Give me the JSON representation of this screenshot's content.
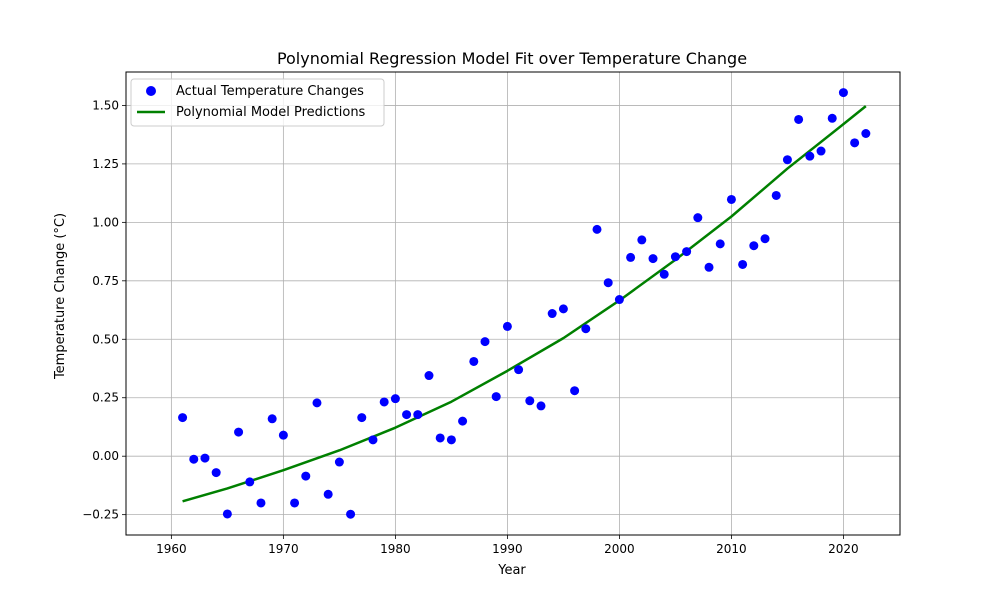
{
  "chart_data": {
    "type": "scatter",
    "title": "Polynomial Regression Model Fit over Temperature Change",
    "xlabel": "Year",
    "ylabel": "Temperature Change (°C)",
    "xlim": [
      1955.95,
      2025.05
    ],
    "ylim": [
      -0.337,
      1.643
    ],
    "xticks": [
      1960,
      1970,
      1980,
      1990,
      2000,
      2010,
      2020
    ],
    "yticks": [
      -0.25,
      0.0,
      0.25,
      0.5,
      0.75,
      1.0,
      1.25,
      1.5
    ],
    "yticks_labels": [
      "−0.25",
      "0.00",
      "0.25",
      "0.50",
      "0.75",
      "1.00",
      "1.25",
      "1.50"
    ],
    "grid": true,
    "legend_position": "upper-left",
    "series": [
      {
        "name": "Actual Temperature Changes",
        "kind": "scatter",
        "color": "#0000ff",
        "points": [
          [
            1961,
            0.165
          ],
          [
            1962,
            -0.013
          ],
          [
            1963,
            -0.008
          ],
          [
            1964,
            -0.07
          ],
          [
            1965,
            -0.247
          ],
          [
            1966,
            0.103
          ],
          [
            1967,
            -0.11
          ],
          [
            1968,
            -0.2
          ],
          [
            1969,
            0.16
          ],
          [
            1970,
            0.09
          ],
          [
            1971,
            -0.2
          ],
          [
            1972,
            -0.085
          ],
          [
            1973,
            0.228
          ],
          [
            1974,
            -0.163
          ],
          [
            1975,
            -0.025
          ],
          [
            1976,
            -0.248
          ],
          [
            1977,
            0.165
          ],
          [
            1978,
            0.07
          ],
          [
            1979,
            0.232
          ],
          [
            1980,
            0.246
          ],
          [
            1981,
            0.178
          ],
          [
            1982,
            0.178
          ],
          [
            1983,
            0.345
          ],
          [
            1984,
            0.078
          ],
          [
            1985,
            0.07
          ],
          [
            1986,
            0.15
          ],
          [
            1987,
            0.405
          ],
          [
            1988,
            0.49
          ],
          [
            1989,
            0.255
          ],
          [
            1990,
            0.555
          ],
          [
            1991,
            0.37
          ],
          [
            1992,
            0.237
          ],
          [
            1993,
            0.215
          ],
          [
            1994,
            0.61
          ],
          [
            1995,
            0.63
          ],
          [
            1996,
            0.28
          ],
          [
            1997,
            0.545
          ],
          [
            1998,
            0.97
          ],
          [
            1999,
            0.742
          ],
          [
            2000,
            0.67
          ],
          [
            2001,
            0.85
          ],
          [
            2002,
            0.925
          ],
          [
            2003,
            0.845
          ],
          [
            2004,
            0.778
          ],
          [
            2005,
            0.853
          ],
          [
            2006,
            0.875
          ],
          [
            2007,
            1.02
          ],
          [
            2008,
            0.808
          ],
          [
            2009,
            0.908
          ],
          [
            2010,
            1.098
          ],
          [
            2011,
            0.82
          ],
          [
            2012,
            0.9
          ],
          [
            2013,
            0.93
          ],
          [
            2014,
            1.115
          ],
          [
            2015,
            1.268
          ],
          [
            2016,
            1.44
          ],
          [
            2017,
            1.283
          ],
          [
            2018,
            1.305
          ],
          [
            2019,
            1.445
          ],
          [
            2020,
            1.555
          ],
          [
            2021,
            1.34
          ],
          [
            2022,
            1.38
          ]
        ]
      },
      {
        "name": "Polynomial Model Predictions",
        "kind": "line",
        "color": "#008000",
        "points": [
          [
            1961,
            -0.193
          ],
          [
            1965,
            -0.138
          ],
          [
            1970,
            -0.06
          ],
          [
            1975,
            0.025
          ],
          [
            1980,
            0.122
          ],
          [
            1985,
            0.233
          ],
          [
            1990,
            0.365
          ],
          [
            1995,
            0.505
          ],
          [
            2000,
            0.666
          ],
          [
            2005,
            0.84
          ],
          [
            2010,
            1.025
          ],
          [
            2015,
            1.23
          ],
          [
            2020,
            1.42
          ],
          [
            2022,
            1.497
          ]
        ]
      }
    ]
  }
}
